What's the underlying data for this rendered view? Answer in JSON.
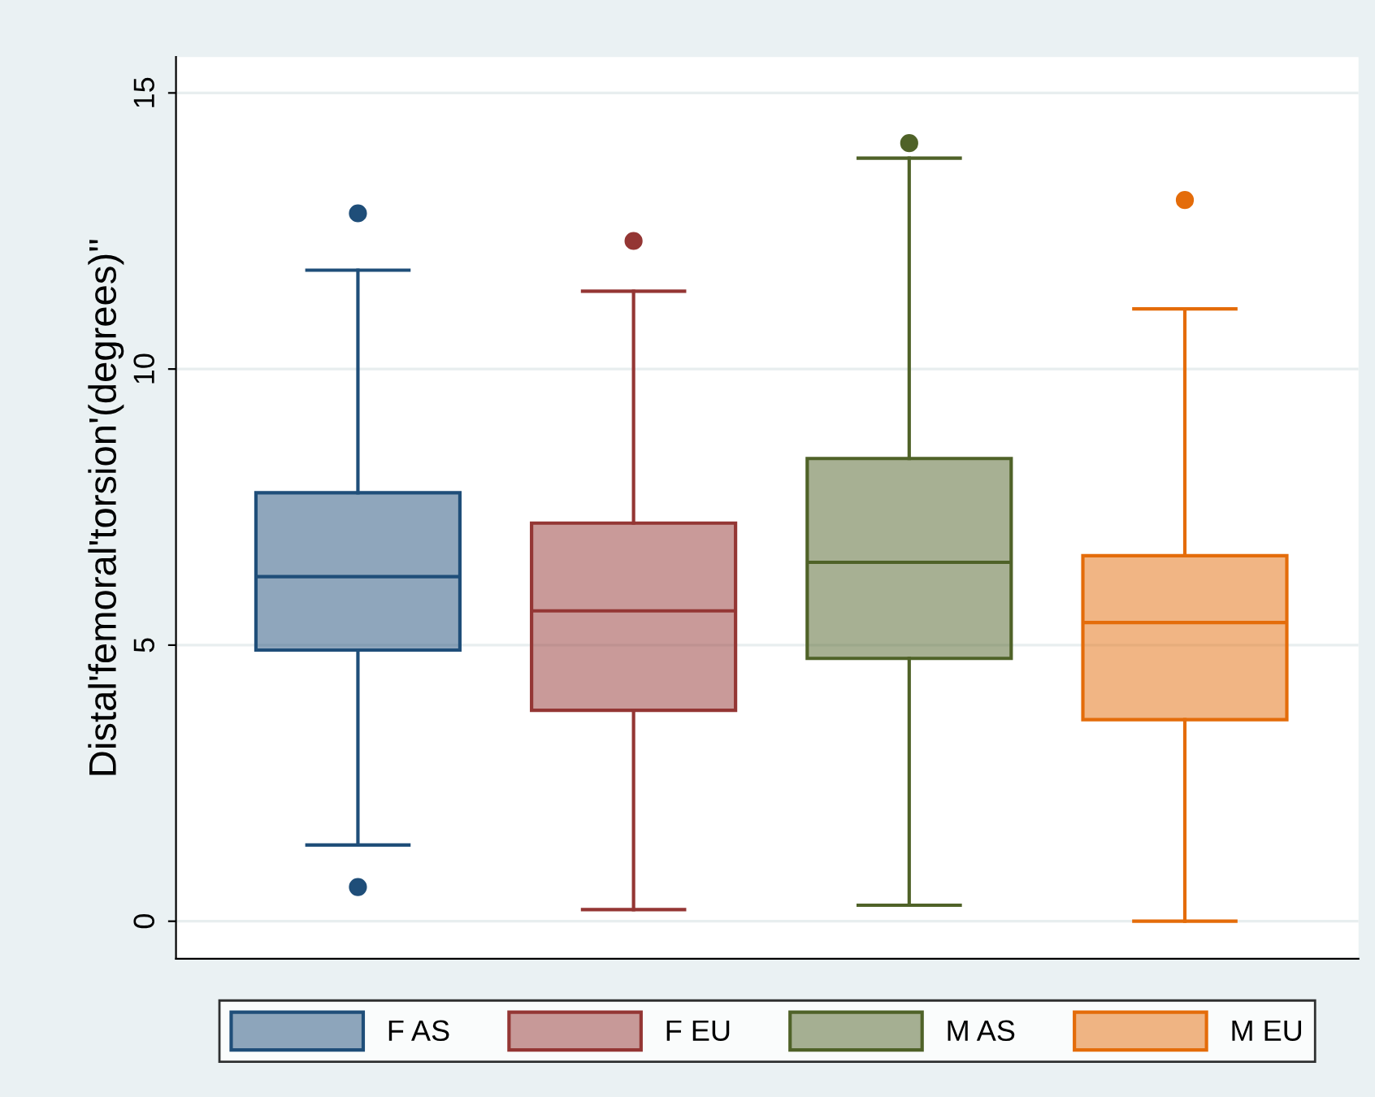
{
  "chart_data": {
    "type": "box",
    "ylabel": "Distal'femoral'torsion'(degrees)''",
    "categories": [
      null,
      null,
      null,
      null
    ],
    "series": [
      {
        "name": "F AS",
        "color": "#1f4e79",
        "boxes": [
          {
            "low": 1.38,
            "q1": 4.91,
            "median": 6.24,
            "q3": 7.76,
            "high": 11.79,
            "outliers": [
              12.82,
              0.62
            ]
          },
          null,
          null,
          null
        ]
      },
      {
        "name": "F EU",
        "color": "#943634",
        "boxes": [
          null,
          {
            "low": 0.21,
            "q1": 3.82,
            "median": 5.62,
            "q3": 7.21,
            "high": 11.41,
            "outliers": [
              12.32
            ]
          },
          null,
          null
        ]
      },
      {
        "name": "M AS",
        "color": "#4f6228",
        "boxes": [
          null,
          null,
          {
            "low": 0.29,
            "q1": 4.76,
            "median": 6.5,
            "q3": 8.38,
            "high": 13.82,
            "outliers": [
              14.09
            ]
          },
          null
        ]
      },
      {
        "name": "M EU",
        "color": "#e46c0a",
        "boxes": [
          null,
          null,
          null,
          {
            "low": 0,
            "q1": 3.65,
            "median": 5.41,
            "q3": 6.62,
            "high": 11.09,
            "outliers": [
              13.06
            ]
          }
        ]
      }
    ],
    "ylim": [
      -0.68,
      15.65
    ],
    "yticks": [
      0,
      5,
      10,
      15
    ],
    "grid": "y",
    "legend": "bottom",
    "tick_labels": "y"
  }
}
